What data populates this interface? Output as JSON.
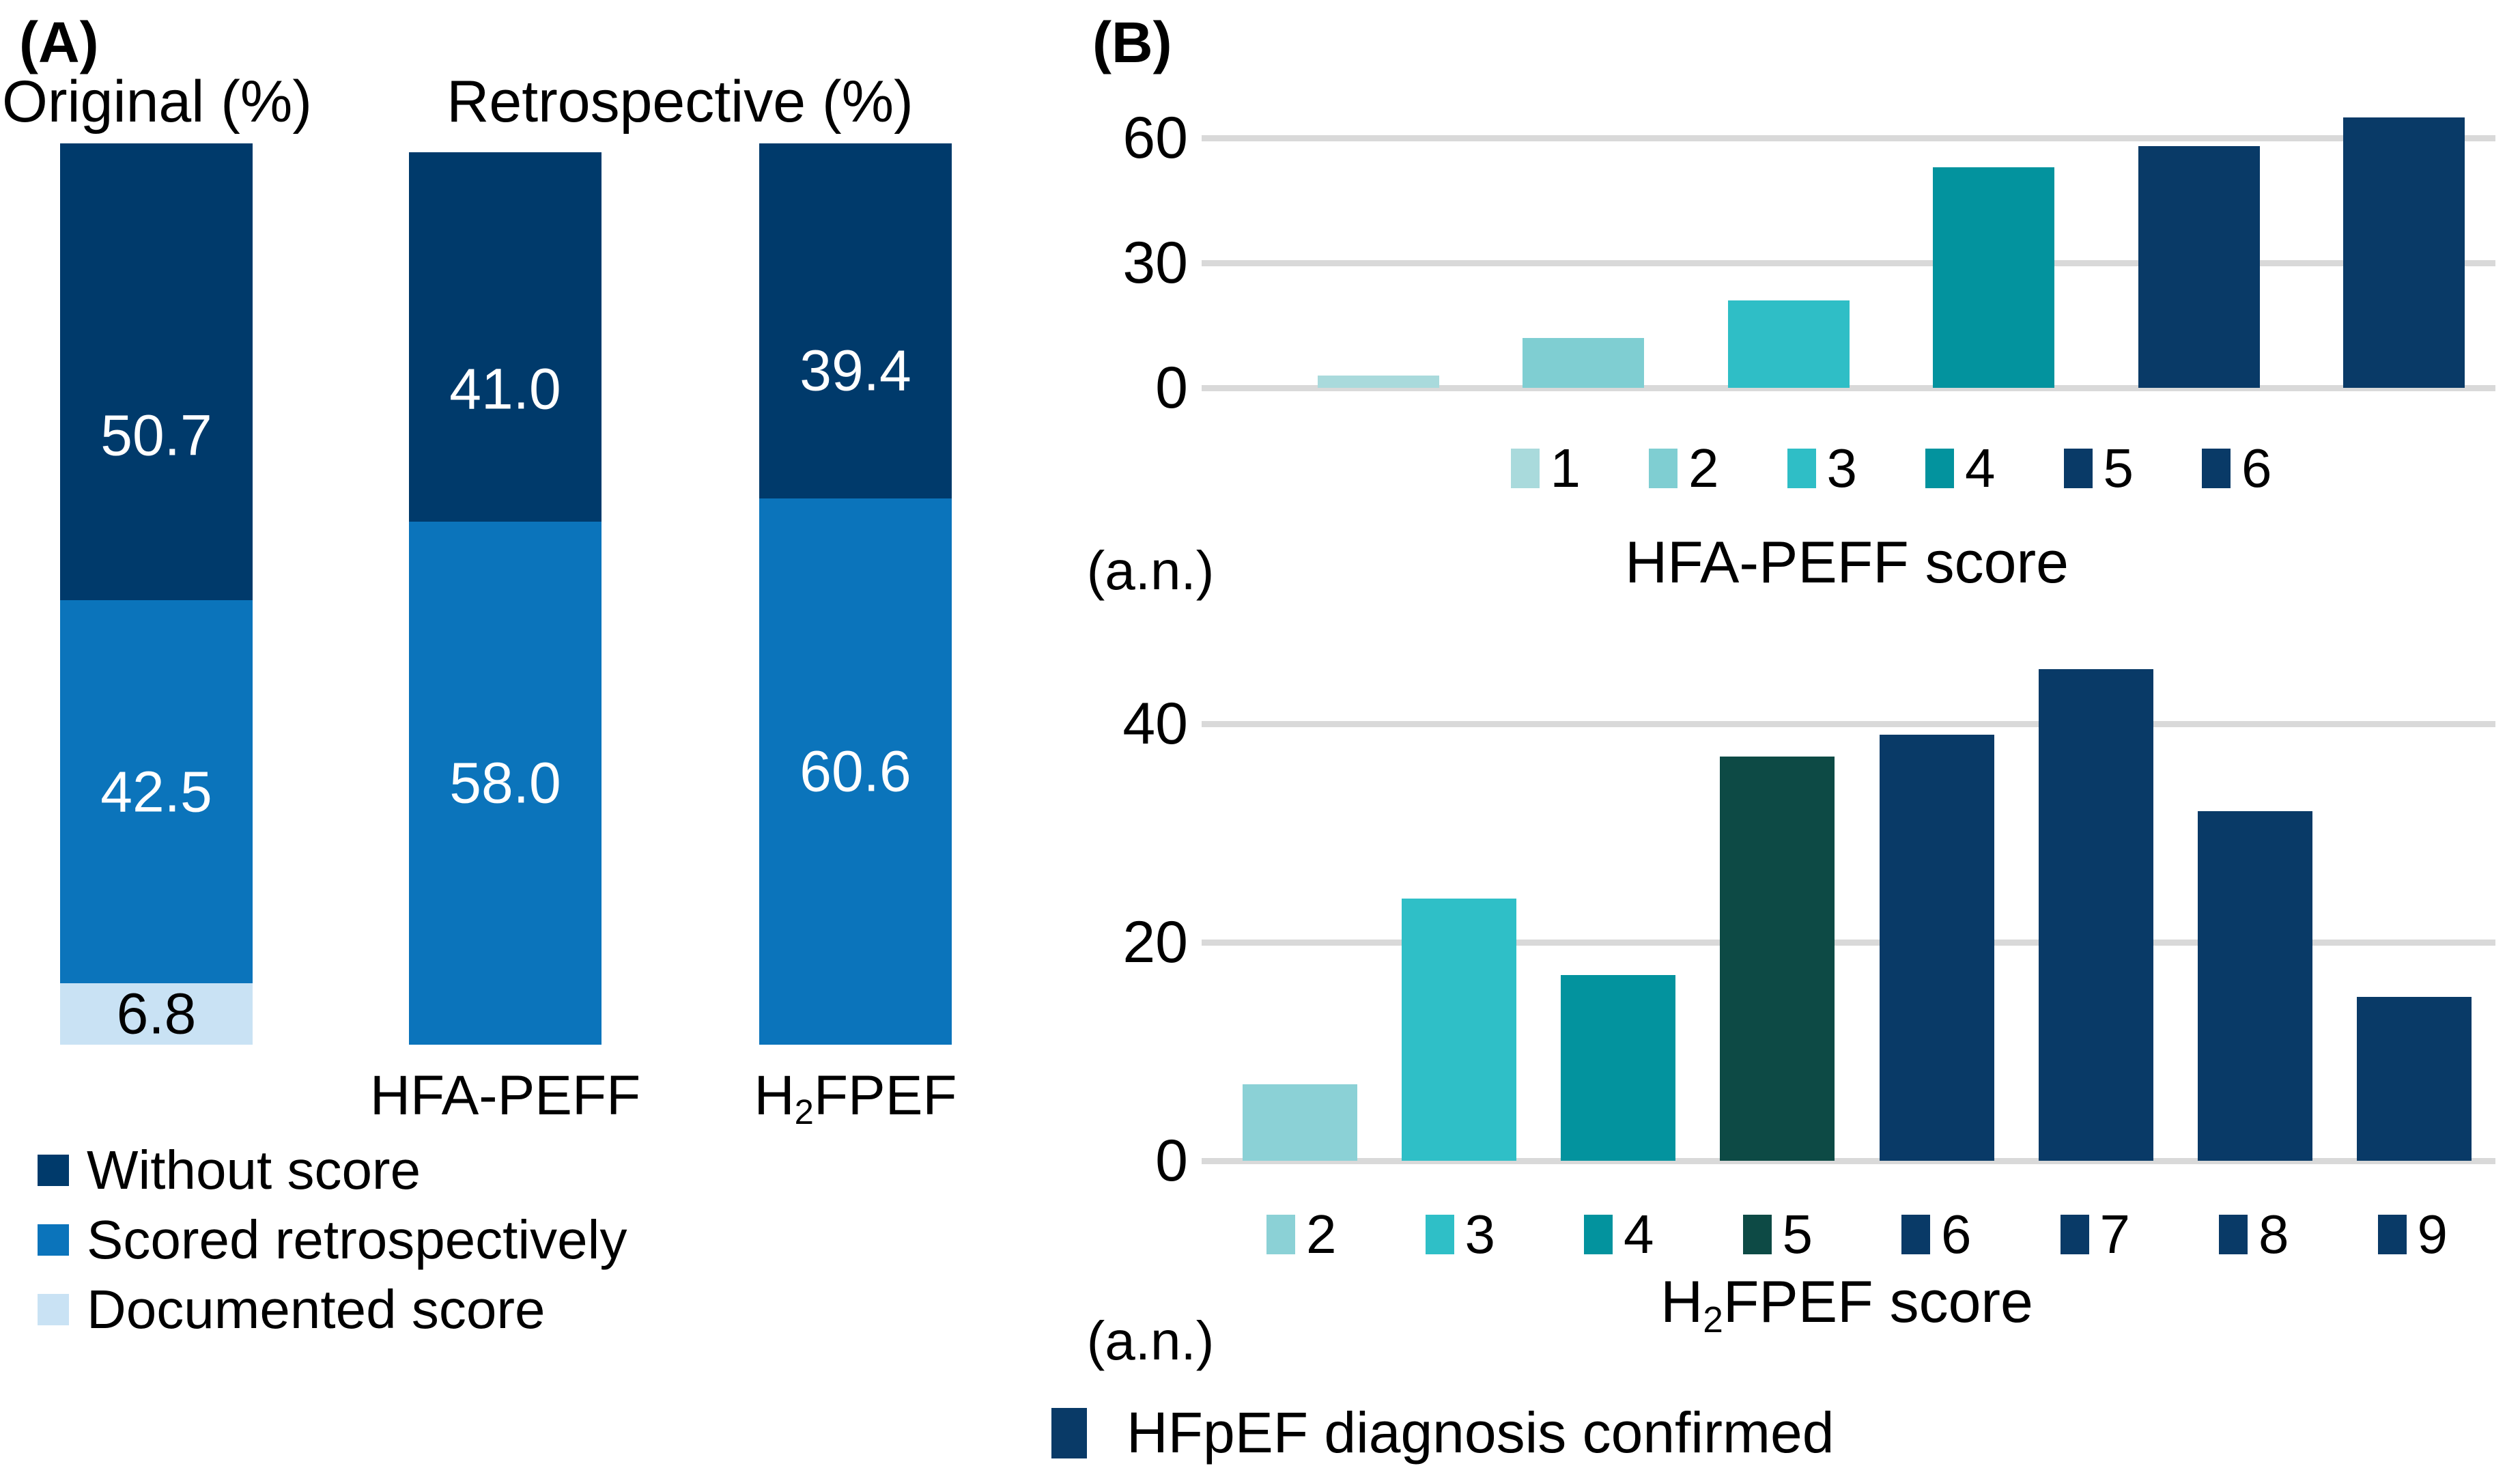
{
  "ui": {
    "panel_a": {
      "label": "(A)",
      "original_title": "Original (%)",
      "retrospective_title": "Retrospective (%)",
      "xlabels": {
        "bar2": "HFA-PEFF",
        "bar3_pre": "H",
        "bar3_sub": "2",
        "bar3_post": "FPEF"
      },
      "legend": [
        {
          "label": "Without score",
          "color": "#003A6B"
        },
        {
          "label": "Scored retrospectively",
          "color": "#0B74BB"
        },
        {
          "label": "Documented score",
          "color": "#C9E2F4"
        }
      ]
    },
    "panel_b": {
      "label": "(B)",
      "chart1": {
        "title": "HFA-PEFF score",
        "ylabel": "(a.n.)"
      },
      "chart2": {
        "title_pre": "H",
        "title_sub": "2",
        "title_post": "FPEF score",
        "ylabel": "(a.n.)"
      },
      "confirmed_legend": {
        "label": "HFpEF diagnosis confirmed",
        "color": "#093A67"
      }
    }
  },
  "chart_data": [
    {
      "type": "bar",
      "panel": "A",
      "stacked": true,
      "unit": "%",
      "title": "Original (%) vs Retrospective (%)",
      "categories": [
        "Original",
        "HFA-PEFF",
        "H2FPEF"
      ],
      "series": [
        {
          "name": "Without score",
          "color": "#003A6B",
          "label_color": "#FFFFFF",
          "values": [
            50.7,
            41.0,
            39.4
          ]
        },
        {
          "name": "Scored retrospectively",
          "color": "#0B74BB",
          "label_color": "#FFFFFF",
          "values": [
            42.5,
            58.0,
            60.6
          ]
        },
        {
          "name": "Documented score",
          "color": "#C9E2F4",
          "label_color": "#000000",
          "values": [
            6.8,
            null,
            null
          ]
        }
      ],
      "ylim": [
        0,
        100
      ],
      "grid": false,
      "legend_position": "bottom-left"
    },
    {
      "type": "bar",
      "panel": "B-top",
      "xlabel": "HFA-PEFF score",
      "ylabel": "(a.n.)",
      "categories": [
        "1",
        "2",
        "3",
        "4",
        "5",
        "6"
      ],
      "values": [
        3,
        12,
        21,
        53,
        58,
        65
      ],
      "bar_colors": [
        "#A9DADC",
        "#7FCED2",
        "#2FBEC6",
        "#03939E",
        "#093A67",
        "#093A67"
      ],
      "yticks": [
        0,
        30,
        60
      ],
      "ylim": [
        0,
        67
      ],
      "grid": true,
      "legend_position": "bottom"
    },
    {
      "type": "bar",
      "panel": "B-bottom",
      "xlabel": "H2FPEF score",
      "ylabel": "(a.n.)",
      "categories": [
        "2",
        "3",
        "4",
        "5",
        "6",
        "7",
        "8",
        "9"
      ],
      "values": [
        7,
        24,
        17,
        37,
        39,
        45,
        32,
        15
      ],
      "bar_colors": [
        "#8BD1D6",
        "#2FBFC7",
        "#03939E",
        "#0D4A45",
        "#093A67",
        "#093A67",
        "#093A67",
        "#093A67"
      ],
      "yticks": [
        0,
        20,
        40
      ],
      "ylim": [
        0,
        46
      ],
      "grid": true,
      "legend_position": "bottom"
    }
  ]
}
